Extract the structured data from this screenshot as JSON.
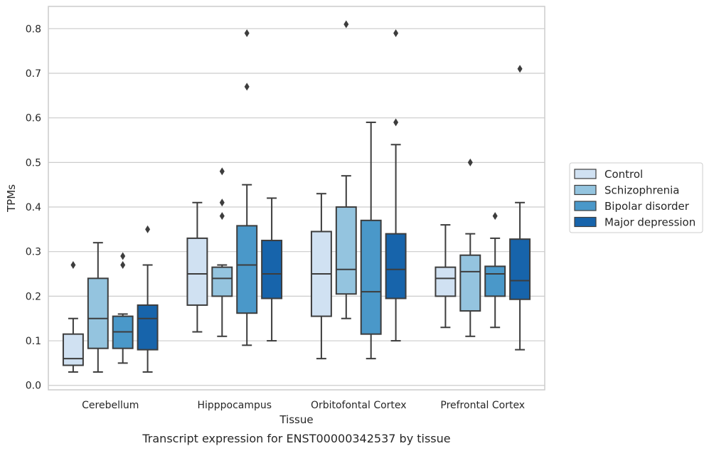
{
  "caption": "Transcript expression for ENST00000342537 by tissue",
  "chart_data": {
    "type": "box",
    "title": "",
    "xlabel": "Tissue",
    "ylabel": "TPMs",
    "ylim": [
      -0.01,
      0.85
    ],
    "yticks": [
      0.0,
      0.1,
      0.2,
      0.3,
      0.4,
      0.5,
      0.6,
      0.7,
      0.8
    ],
    "ytick_labels": [
      "0.0",
      "0.1",
      "0.2",
      "0.3",
      "0.4",
      "0.5",
      "0.6",
      "0.7",
      "0.8"
    ],
    "grid": "horizontal",
    "legend_position": "right",
    "categories": [
      "Cerebellum",
      "Hipppocampus",
      "Orbitofontal Cortex",
      "Prefrontal Cortex"
    ],
    "series": [
      {
        "name": "Control",
        "color": "#d0e1f2",
        "boxes": [
          {
            "whislo": 0.03,
            "q1": 0.045,
            "med": 0.06,
            "q3": 0.115,
            "whishi": 0.15,
            "fliers": [
              0.27
            ]
          },
          {
            "whislo": 0.12,
            "q1": 0.18,
            "med": 0.25,
            "q3": 0.33,
            "whishi": 0.41,
            "fliers": []
          },
          {
            "whislo": 0.06,
            "q1": 0.155,
            "med": 0.25,
            "q3": 0.345,
            "whishi": 0.43,
            "fliers": []
          },
          {
            "whislo": 0.13,
            "q1": 0.2,
            "med": 0.24,
            "q3": 0.265,
            "whishi": 0.36,
            "fliers": []
          }
        ]
      },
      {
        "name": "Schizophrenia",
        "color": "#94c4df",
        "boxes": [
          {
            "whislo": 0.03,
            "q1": 0.083,
            "med": 0.15,
            "q3": 0.24,
            "whishi": 0.32,
            "fliers": []
          },
          {
            "whislo": 0.11,
            "q1": 0.2,
            "med": 0.24,
            "q3": 0.265,
            "whishi": 0.27,
            "fliers": [
              0.48,
              0.41,
              0.38
            ]
          },
          {
            "whislo": 0.15,
            "q1": 0.205,
            "med": 0.26,
            "q3": 0.4,
            "whishi": 0.47,
            "fliers": [
              0.81
            ]
          },
          {
            "whislo": 0.11,
            "q1": 0.167,
            "med": 0.255,
            "q3": 0.292,
            "whishi": 0.34,
            "fliers": [
              0.5
            ]
          }
        ]
      },
      {
        "name": "Bipolar disorder",
        "color": "#4a98c9",
        "boxes": [
          {
            "whislo": 0.05,
            "q1": 0.083,
            "med": 0.12,
            "q3": 0.155,
            "whishi": 0.16,
            "fliers": [
              0.29,
              0.27
            ]
          },
          {
            "whislo": 0.09,
            "q1": 0.162,
            "med": 0.27,
            "q3": 0.358,
            "whishi": 0.45,
            "fliers": [
              0.67,
              0.79
            ]
          },
          {
            "whislo": 0.06,
            "q1": 0.115,
            "med": 0.21,
            "q3": 0.37,
            "whishi": 0.59,
            "fliers": []
          },
          {
            "whislo": 0.13,
            "q1": 0.2,
            "med": 0.25,
            "q3": 0.267,
            "whishi": 0.33,
            "fliers": [
              0.38
            ]
          }
        ]
      },
      {
        "name": "Major depression",
        "color": "#1764ab",
        "boxes": [
          {
            "whislo": 0.03,
            "q1": 0.08,
            "med": 0.15,
            "q3": 0.18,
            "whishi": 0.27,
            "fliers": [
              0.35
            ]
          },
          {
            "whislo": 0.1,
            "q1": 0.195,
            "med": 0.25,
            "q3": 0.325,
            "whishi": 0.42,
            "fliers": []
          },
          {
            "whislo": 0.1,
            "q1": 0.195,
            "med": 0.26,
            "q3": 0.34,
            "whishi": 0.54,
            "fliers": [
              0.59,
              0.79
            ]
          },
          {
            "whislo": 0.08,
            "q1": 0.193,
            "med": 0.235,
            "q3": 0.328,
            "whishi": 0.41,
            "fliers": [
              0.71
            ]
          }
        ]
      }
    ]
  }
}
